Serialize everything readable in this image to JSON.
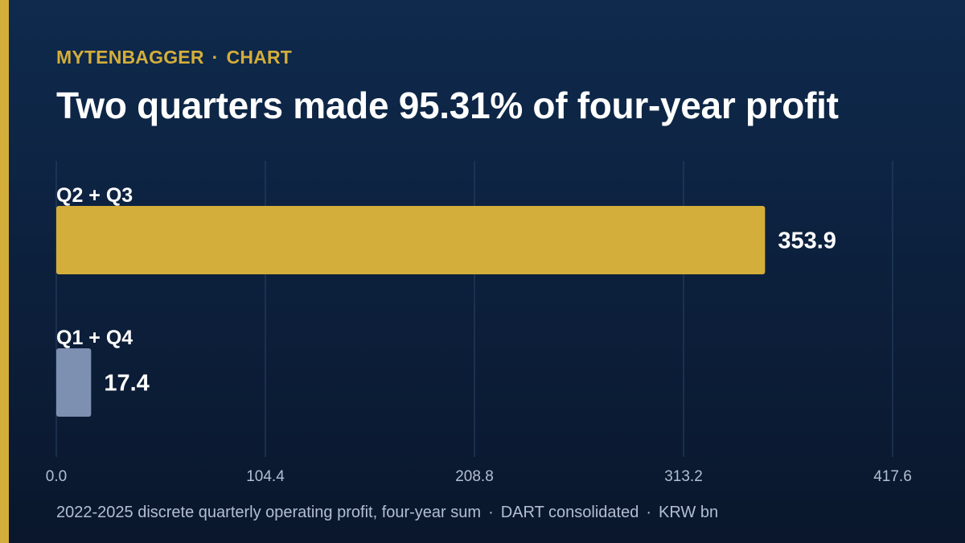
{
  "header": {
    "brand": "MYTENBAGGER",
    "separator": "·",
    "section": "CHART",
    "title": "Two quarters made 95.31% of four-year profit"
  },
  "footer": {
    "parts": [
      "2022-2025 discrete quarterly operating profit, four-year sum",
      "DART consolidated",
      "KRW bn"
    ],
    "separator": "·"
  },
  "colors": {
    "accent": "#d4ae3a",
    "secondary_bar": "#7d90b2",
    "background": "#0c1f3b",
    "gridline": "#2a4366",
    "tick_text": "#b3bfd1"
  },
  "chart_data": {
    "type": "bar",
    "orientation": "horizontal",
    "categories": [
      "Q2 + Q3",
      "Q1 + Q4"
    ],
    "values": [
      353.9,
      17.4
    ],
    "value_labels": [
      "353.9",
      "17.4"
    ],
    "bar_colors": [
      "#d4ae3a",
      "#7d90b2"
    ],
    "xlim": [
      0,
      417.6
    ],
    "xticks": [
      0,
      104.4,
      208.8,
      313.2,
      417.6
    ],
    "xtick_labels": [
      "0.0",
      "104.4",
      "208.8",
      "313.2",
      "417.6"
    ],
    "grid": true,
    "title": "",
    "xlabel": "",
    "ylabel": ""
  }
}
